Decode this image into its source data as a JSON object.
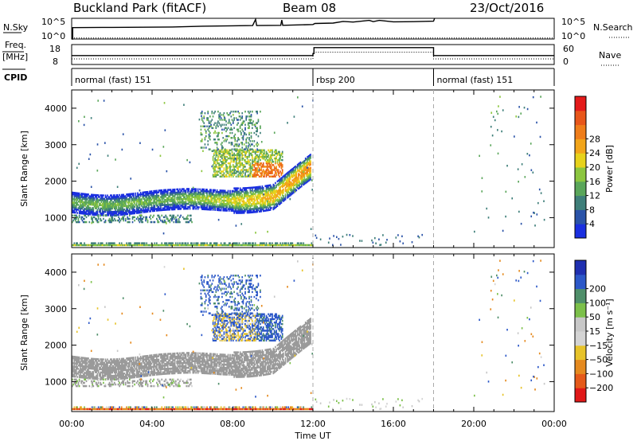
{
  "header": {
    "station": "Buckland Park (fitACF)",
    "beam": "Beam 08",
    "date": "23/Oct/2016"
  },
  "colors": {
    "power_scale": [
      "#1a2fe0",
      "#2a53a8",
      "#3f7f7a",
      "#5aa65a",
      "#8cc63f",
      "#e7d21b",
      "#f2a51a",
      "#ef7d1a",
      "#e8561a",
      "#e41a1a"
    ],
    "velocity_scale": [
      "#1f2fb0",
      "#2c58c8",
      "#4f8f6a",
      "#7cc04a",
      "#c8c8c8",
      "#d4d4d4",
      "#e7c32a",
      "#e58a1f",
      "#e55a1a",
      "#e01818"
    ],
    "ground_scatter_velocity": "#9a9a9a"
  },
  "chart_data": [
    {
      "type": "line",
      "name": "noise-panel",
      "left_label": "N.Sky",
      "left_ticks": [
        "10^5",
        "10^0"
      ],
      "right_label": "N.Search",
      "right_ticks": [
        "10^5",
        "10^0"
      ],
      "xlim": [
        0,
        24
      ],
      "series": [
        {
          "values": [
            [
              0,
              0.0
            ],
            [
              0.05,
              0.0
            ],
            [
              0.05,
              0.55
            ],
            [
              2,
              0.56
            ],
            [
              5,
              0.58
            ],
            [
              6.5,
              0.62
            ],
            [
              8,
              0.64
            ],
            [
              9,
              0.65
            ],
            [
              9.15,
              0.95
            ],
            [
              9.2,
              0.65
            ],
            [
              10.4,
              0.66
            ],
            [
              10.45,
              0.92
            ],
            [
              10.5,
              0.66
            ],
            [
              12,
              0.7
            ],
            [
              12.1,
              0.75
            ],
            [
              13,
              0.77
            ],
            [
              13.5,
              0.85
            ],
            [
              14,
              0.82
            ],
            [
              14.8,
              0.9
            ],
            [
              15,
              0.84
            ],
            [
              15.3,
              0.9
            ],
            [
              16,
              0.83
            ],
            [
              17,
              0.84
            ],
            [
              18,
              0.86
            ],
            [
              18.05,
              1.0
            ]
          ]
        },
        {
          "values": [
            [
              0,
              0.05
            ],
            [
              24,
              0.05
            ]
          ],
          "dotted": true
        }
      ]
    },
    {
      "type": "line",
      "name": "frequency-panel",
      "left_label": "Freq.",
      "left_unit": "[MHz]",
      "left_ticks": [
        "18",
        "8"
      ],
      "right_label": "Nave",
      "right_ticks": [
        "60",
        "0"
      ],
      "xlim": [
        0,
        24
      ],
      "series": [
        {
          "values": [
            [
              0,
              0.45
            ],
            [
              12,
              0.45
            ],
            [
              12,
              0.55
            ],
            [
              12.05,
              0.55
            ],
            [
              12.05,
              0.85
            ],
            [
              18,
              0.85
            ],
            [
              18,
              0.45
            ],
            [
              24,
              0.45
            ]
          ]
        },
        {
          "values": [
            [
              0,
              0.28
            ],
            [
              12,
              0.28
            ],
            [
              12,
              0.62
            ],
            [
              18,
              0.62
            ],
            [
              18,
              0.28
            ],
            [
              24,
              0.28
            ]
          ],
          "dotted": true
        }
      ]
    },
    {
      "type": "table",
      "name": "cpid-panel",
      "label": "CPID",
      "segments": [
        {
          "start": 0,
          "end": 12,
          "text": "normal (fast) 151"
        },
        {
          "start": 12,
          "end": 18,
          "text": "rbsp 200"
        },
        {
          "start": 18,
          "end": 24,
          "text": "normal (fast) 151"
        }
      ]
    },
    {
      "type": "heatmap",
      "name": "power-panel",
      "ylabel": "Slant Range [km]",
      "xlim": [
        0,
        24
      ],
      "ylim": [
        180,
        4500
      ],
      "yticks": [
        1000,
        2000,
        3000,
        4000
      ],
      "colorbar_label": "Power [dB]",
      "colorbar_ticks": [
        4,
        8,
        12,
        16,
        20,
        24,
        28
      ],
      "colorbar_range": [
        0,
        30
      ]
    },
    {
      "type": "heatmap",
      "name": "velocity-panel",
      "ylabel": "Slant Range [km]",
      "xlim": [
        0,
        24
      ],
      "ylim": [
        180,
        4500
      ],
      "yticks": [
        1000,
        2000,
        3000,
        4000
      ],
      "xlabel": "Time UT",
      "xticks": [
        "00:00",
        "04:00",
        "08:00",
        "12:00",
        "16:00",
        "20:00",
        "00:00"
      ],
      "colorbar_label": "Velocity [m s⁻¹]",
      "colorbar_ticks": [
        "200",
        "100",
        "50",
        "15",
        "−15",
        "−50",
        "−100",
        "−200"
      ]
    }
  ]
}
